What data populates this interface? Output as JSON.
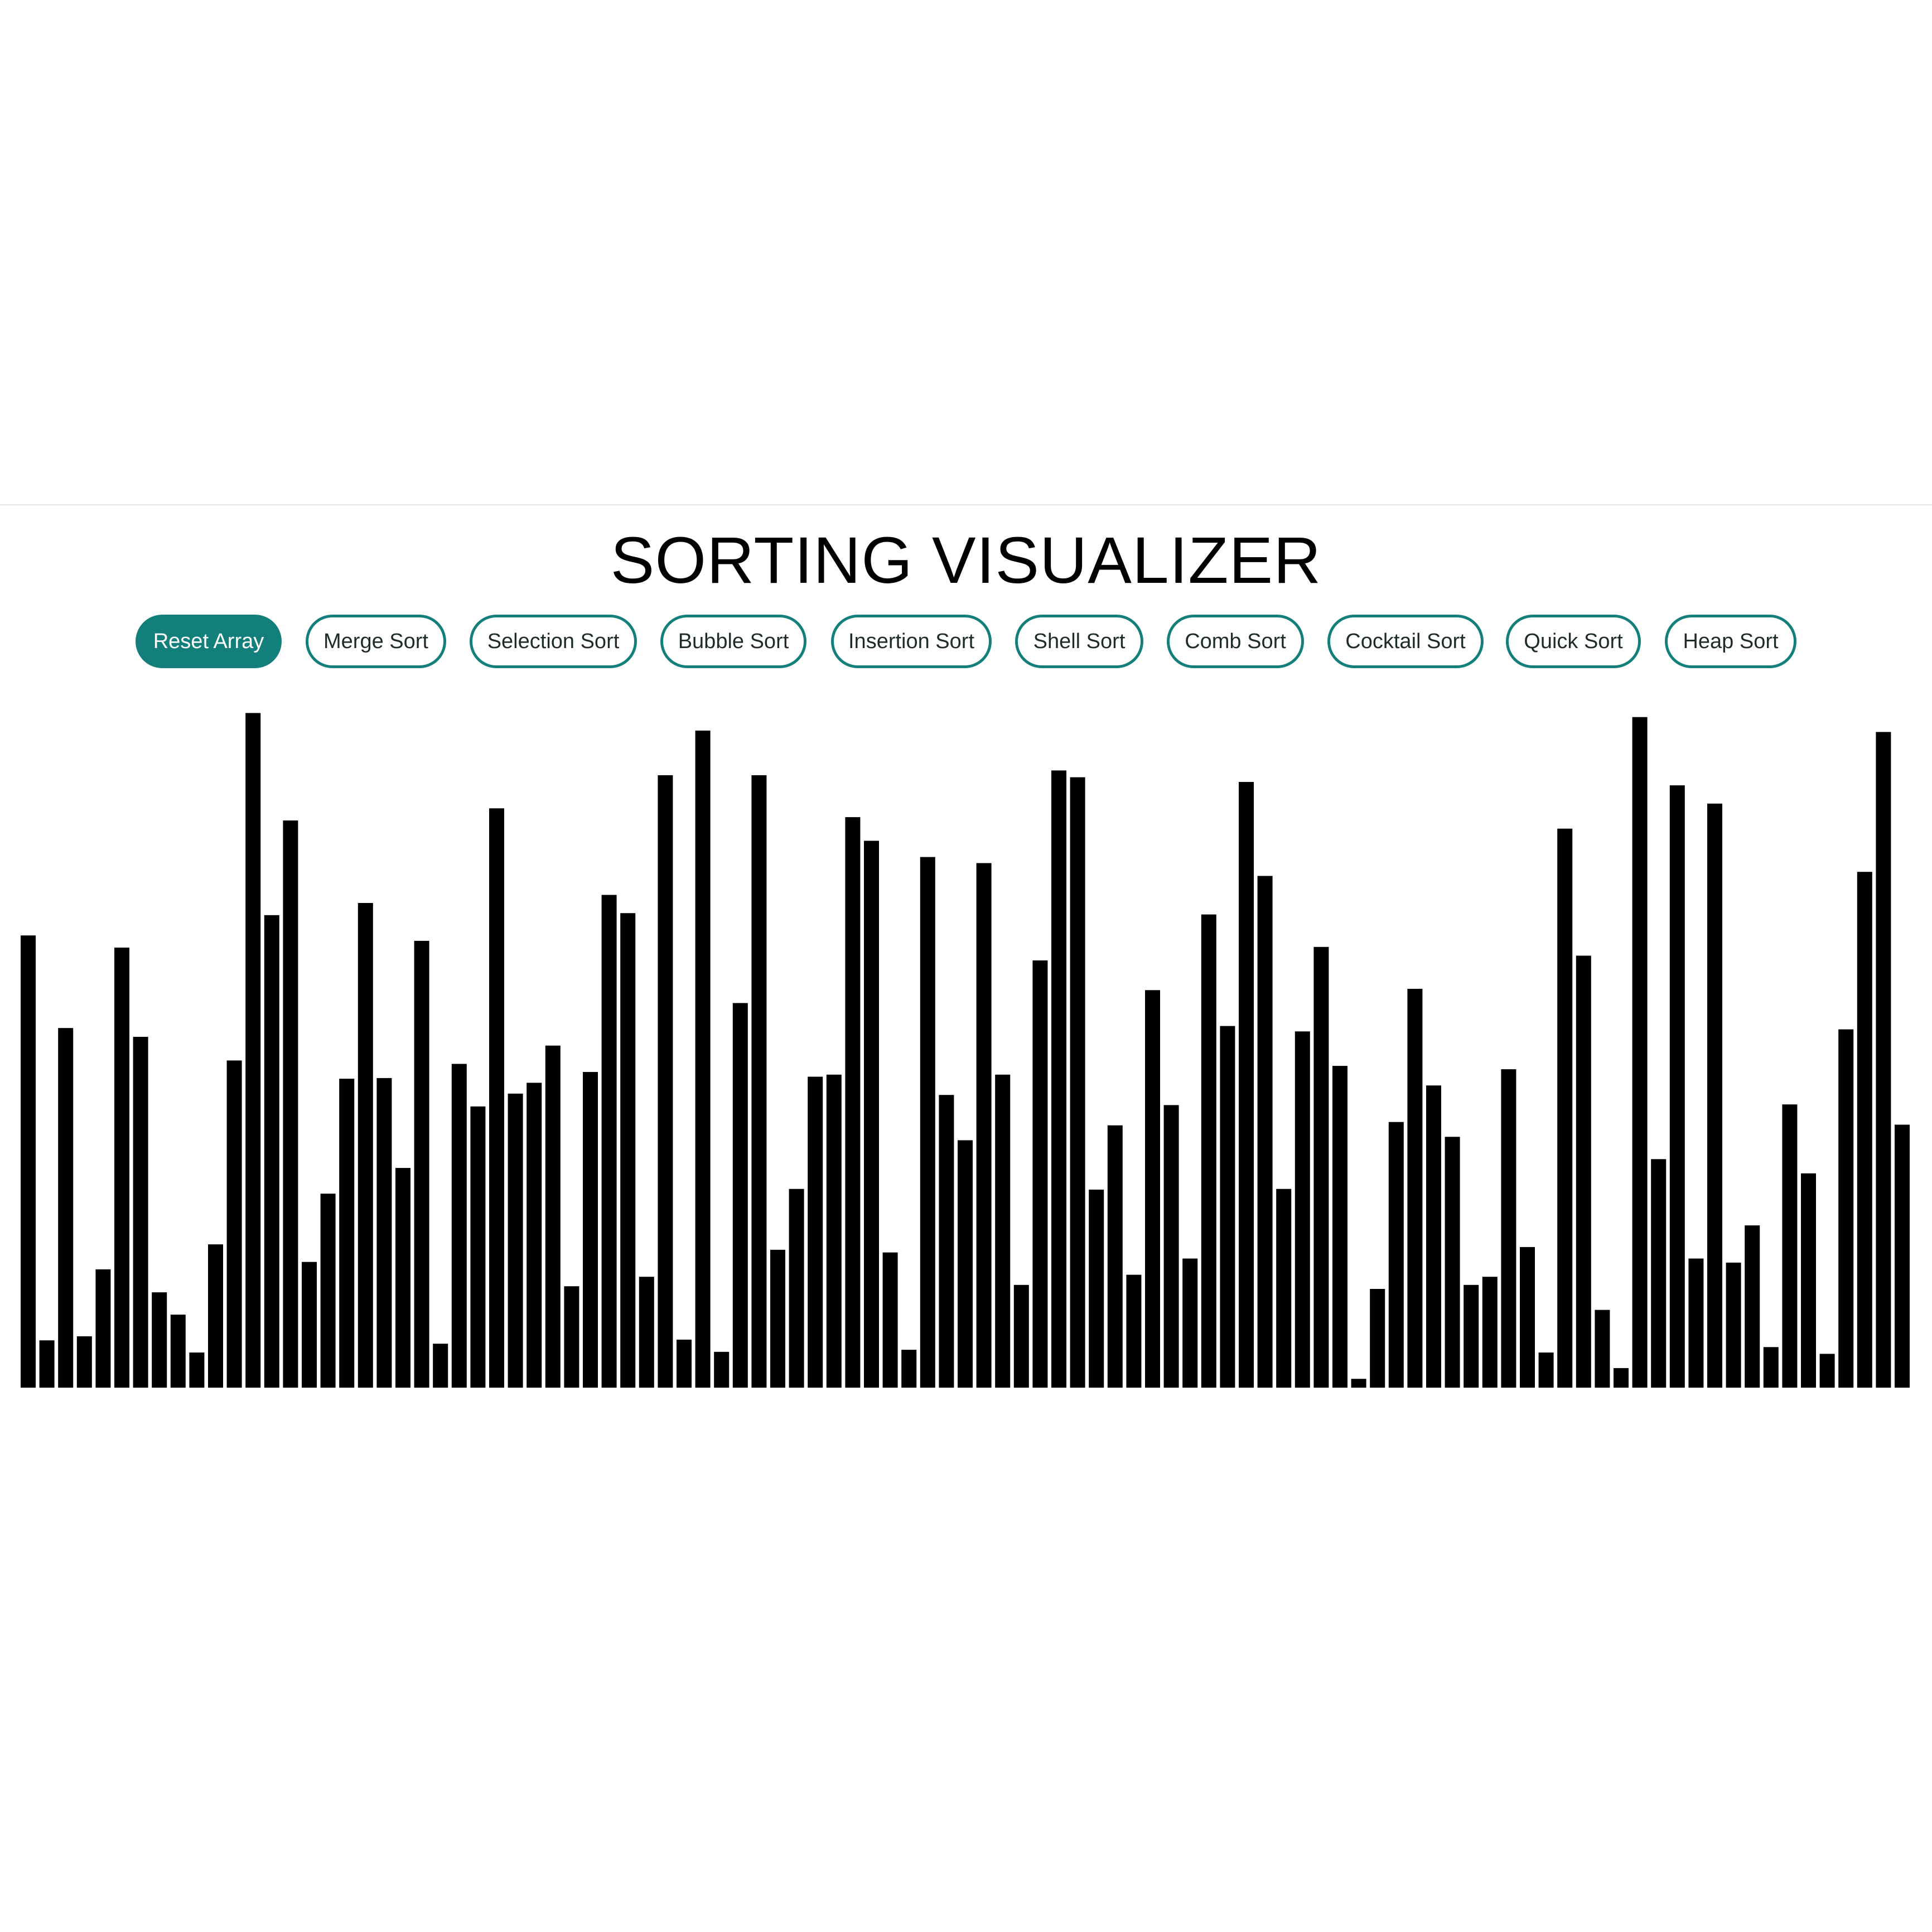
{
  "header": {
    "title": "SORTING VISUALIZER"
  },
  "toolbar": {
    "buttons": [
      {
        "label": "Reset Array",
        "active": true
      },
      {
        "label": "Merge Sort",
        "active": false
      },
      {
        "label": "Selection Sort",
        "active": false
      },
      {
        "label": "Bubble Sort",
        "active": false
      },
      {
        "label": "Insertion Sort",
        "active": false
      },
      {
        "label": "Shell Sort",
        "active": false
      },
      {
        "label": "Comb Sort",
        "active": false
      },
      {
        "label": "Cocktail Sort",
        "active": false
      },
      {
        "label": "Quick Sort",
        "active": false
      },
      {
        "label": "Heap Sort",
        "active": false
      }
    ]
  },
  "colors": {
    "accent": "#137f7b",
    "bar": "#000000"
  },
  "chart_data": {
    "type": "bar",
    "values": [
      669,
      70,
      532,
      76,
      175,
      651,
      519,
      141,
      108,
      52,
      212,
      484,
      998,
      699,
      839,
      186,
      287,
      457,
      717,
      458,
      325,
      661,
      65,
      479,
      416,
      857,
      435,
      451,
      506,
      150,
      467,
      729,
      702,
      164,
      906,
      71,
      972,
      53,
      569,
      906,
      204,
      294,
      460,
      463,
      844,
      809,
      200,
      56,
      785,
      433,
      366,
      776,
      463,
      152,
      632,
      913,
      903,
      293,
      388,
      167,
      588,
      418,
      191,
      700,
      535,
      896,
      757,
      294,
      527,
      652,
      476,
      13,
      146,
      393,
      590,
      447,
      371,
      152,
      164,
      471,
      208,
      52,
      827,
      639,
      115,
      29,
      992,
      338,
      891,
      191,
      864,
      185,
      240,
      60,
      419,
      317,
      50,
      530,
      763,
      970,
      389
    ],
    "ylim": [
      0,
      1000
    ]
  }
}
